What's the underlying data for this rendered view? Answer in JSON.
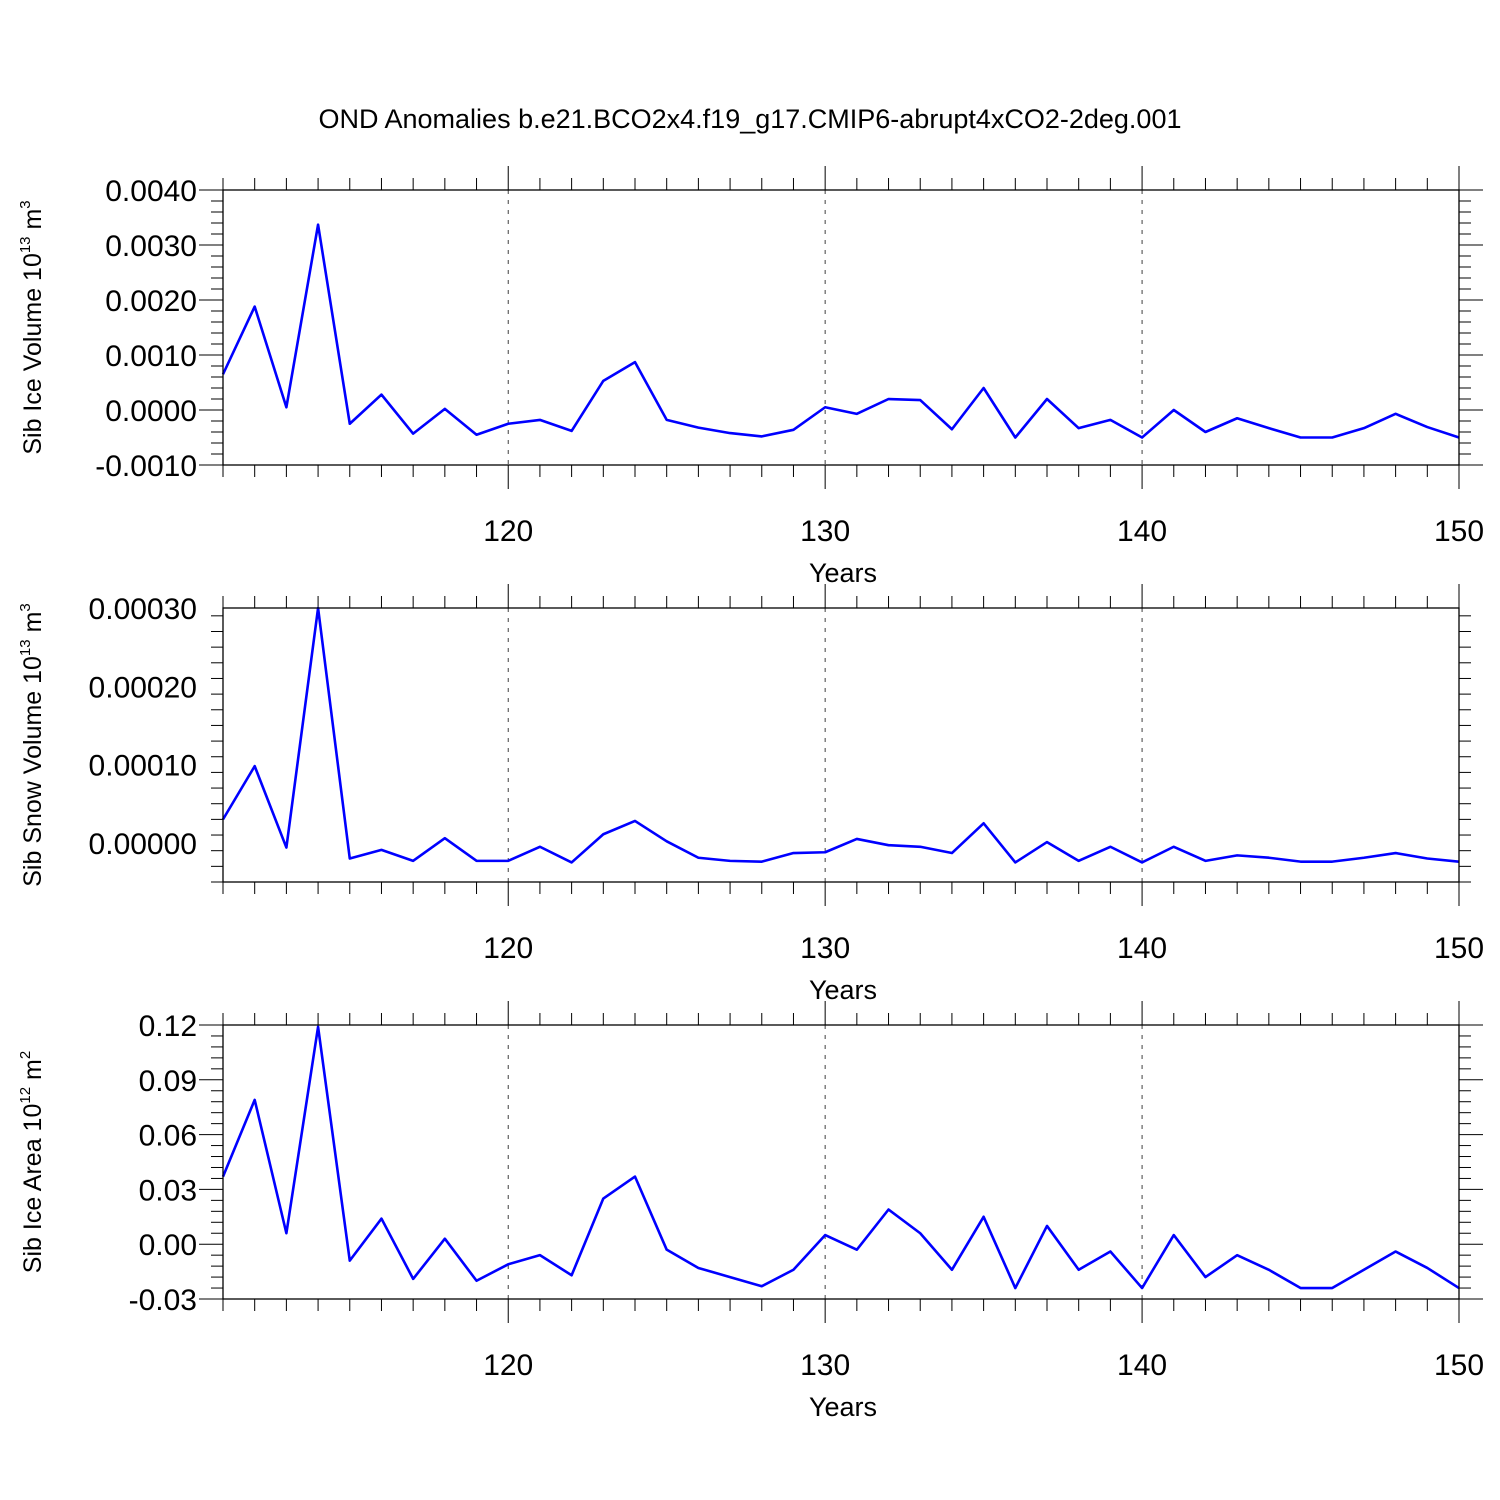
{
  "title": "OND Anomalies b.e21.BCO2x4.f19_g17.CMIP6-abrupt4xCO2-2deg.001",
  "colors": {
    "line": "#0000ff",
    "axis": "#000000",
    "grid": "#000000"
  },
  "chart_data": [
    {
      "type": "line",
      "ylabel": {
        "text": "Sib Ice Volume 10",
        "exponent": "13",
        "unit": " m",
        "unit_exponent": "3"
      },
      "xlabel": "Years",
      "xlim": [
        111,
        150
      ],
      "ylim": [
        -0.001,
        0.004
      ],
      "yticks": [
        -0.001,
        0.0,
        0.001,
        0.002,
        0.003,
        0.004
      ],
      "ytick_labels": [
        "-0.0010",
        "0.0000",
        "0.0010",
        "0.0020",
        "0.0030",
        "0.0040"
      ],
      "xticks": [
        120,
        130,
        140,
        150
      ],
      "xtick_labels": [
        "120",
        "130",
        "140",
        "150"
      ],
      "grid": "vertical dashed at major x ticks",
      "x": [
        111,
        112,
        113,
        114,
        115,
        116,
        117,
        118,
        119,
        120,
        121,
        122,
        123,
        124,
        125,
        126,
        127,
        128,
        129,
        130,
        131,
        132,
        133,
        134,
        135,
        136,
        137,
        138,
        139,
        140,
        141,
        142,
        143,
        144,
        145,
        146,
        147,
        148,
        149,
        150
      ],
      "values": [
        0.00065,
        0.00188,
        5e-05,
        0.00337,
        -0.00025,
        0.00028,
        -0.00043,
        2e-05,
        -0.00045,
        -0.00025,
        -0.00018,
        -0.00038,
        0.00053,
        0.00087,
        -0.00018,
        -0.00032,
        -0.00042,
        -0.00048,
        -0.00036,
        5e-05,
        -7e-05,
        0.0002,
        0.00018,
        -0.00035,
        0.0004,
        -0.0005,
        0.0002,
        -0.00033,
        -0.00018,
        -0.0005,
        0.0,
        -0.0004,
        -0.00015,
        -0.00033,
        -0.0005,
        -0.0005,
        -0.00033,
        -7e-05,
        -0.00031,
        -0.0005
      ]
    },
    {
      "type": "line",
      "ylabel": {
        "text": "Sib Snow Volume 10",
        "exponent": "13",
        "unit": " m",
        "unit_exponent": "3"
      },
      "xlabel": "Years",
      "xlim": [
        111,
        150
      ],
      "ylim": [
        -5e-05,
        0.0003
      ],
      "yticks": [
        0.0,
        0.0001,
        0.0002,
        0.0003
      ],
      "ytick_labels": [
        "0.00000",
        "0.00010",
        "0.00020",
        "0.00030"
      ],
      "xticks": [
        120,
        130,
        140,
        150
      ],
      "xtick_labels": [
        "120",
        "130",
        "140",
        "150"
      ],
      "grid": "vertical dashed at major x ticks",
      "x": [
        111,
        112,
        113,
        114,
        115,
        116,
        117,
        118,
        119,
        120,
        121,
        122,
        123,
        124,
        125,
        126,
        127,
        128,
        129,
        130,
        131,
        132,
        133,
        134,
        135,
        136,
        137,
        138,
        139,
        140,
        141,
        142,
        143,
        144,
        145,
        146,
        147,
        148,
        149,
        150
      ],
      "values": [
        3e-05,
        9.8e-05,
        -6e-06,
        0.0003,
        -2e-05,
        -9e-06,
        -2.3e-05,
        6e-06,
        -2.3e-05,
        -2.3e-05,
        -5e-06,
        -2.5e-05,
        1.1e-05,
        2.8e-05,
        2e-06,
        -1.9e-05,
        -2.3e-05,
        -2.4e-05,
        -1.3e-05,
        -1.2e-05,
        5e-06,
        -3e-06,
        -5e-06,
        -1.3e-05,
        2.5e-05,
        -2.5e-05,
        1e-06,
        -2.3e-05,
        -5e-06,
        -2.5e-05,
        -5e-06,
        -2.3e-05,
        -1.6e-05,
        -1.9e-05,
        -2.4e-05,
        -2.4e-05,
        -1.9e-05,
        -1.3e-05,
        -2e-05,
        -2.4e-05
      ]
    },
    {
      "type": "line",
      "ylabel": {
        "text": "Sib Ice Area 10",
        "exponent": "12",
        "unit": " m",
        "unit_exponent": "2"
      },
      "xlabel": "Years",
      "xlim": [
        111,
        150
      ],
      "ylim": [
        -0.03,
        0.12
      ],
      "yticks": [
        -0.03,
        0.0,
        0.03,
        0.06,
        0.09,
        0.12
      ],
      "ytick_labels": [
        "-0.03",
        "0.00",
        "0.03",
        "0.06",
        "0.09",
        "0.12"
      ],
      "xticks": [
        120,
        130,
        140,
        150
      ],
      "xtick_labels": [
        "120",
        "130",
        "140",
        "150"
      ],
      "grid": "vertical dashed at major x ticks",
      "x": [
        111,
        112,
        113,
        114,
        115,
        116,
        117,
        118,
        119,
        120,
        121,
        122,
        123,
        124,
        125,
        126,
        127,
        128,
        129,
        130,
        131,
        132,
        133,
        134,
        135,
        136,
        137,
        138,
        139,
        140,
        141,
        142,
        143,
        144,
        145,
        146,
        147,
        148,
        149,
        150
      ],
      "values": [
        0.037,
        0.079,
        0.006,
        0.119,
        -0.009,
        0.014,
        -0.019,
        0.003,
        -0.02,
        -0.011,
        -0.006,
        -0.017,
        0.025,
        0.037,
        -0.003,
        -0.013,
        -0.018,
        -0.023,
        -0.014,
        0.005,
        -0.003,
        0.019,
        0.006,
        -0.014,
        0.015,
        -0.024,
        0.01,
        -0.014,
        -0.004,
        -0.024,
        0.005,
        -0.018,
        -0.006,
        -0.014,
        -0.024,
        -0.024,
        -0.014,
        -0.004,
        -0.013,
        -0.024
      ]
    }
  ]
}
